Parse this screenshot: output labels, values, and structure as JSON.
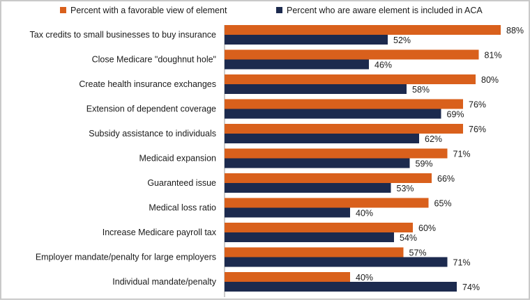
{
  "chart_data": {
    "type": "bar",
    "orientation": "horizontal",
    "categories": [
      "Tax credits to small businesses to buy  insurance",
      "Close Medicare \"doughnut hole\"",
      "Create health insurance exchanges",
      "Extension of dependent coverage",
      "Subsidy assistance to individuals",
      "Medicaid expansion",
      "Guaranteed issue",
      "Medical loss ratio",
      "Increase Medicare payroll tax",
      "Employer mandate/penalty for large employers",
      "Individual mandate/penalty"
    ],
    "series": [
      {
        "name": "Percent with a favorable view of element",
        "color": "#d9601c",
        "values": [
          88,
          81,
          80,
          76,
          76,
          71,
          66,
          65,
          60,
          57,
          40
        ],
        "labels": [
          "88%",
          "81%",
          "80%",
          "76%",
          "76%",
          "71%",
          "66%",
          "65%",
          "60%",
          "57%",
          "40%"
        ]
      },
      {
        "name": "Percent who are aware element is included in ACA",
        "color": "#1c2a4e",
        "values": [
          52,
          46,
          58,
          69,
          62,
          59,
          53,
          40,
          54,
          71,
          74
        ],
        "labels": [
          "52%",
          "46%",
          "58%",
          "69%",
          "62%",
          "59%",
          "53%",
          "40%",
          "54%",
          "71%",
          "74%"
        ]
      }
    ],
    "title": "",
    "xlabel": "",
    "ylabel": "",
    "xlim": [
      0,
      100
    ],
    "grid": false,
    "legend_position": "top"
  }
}
